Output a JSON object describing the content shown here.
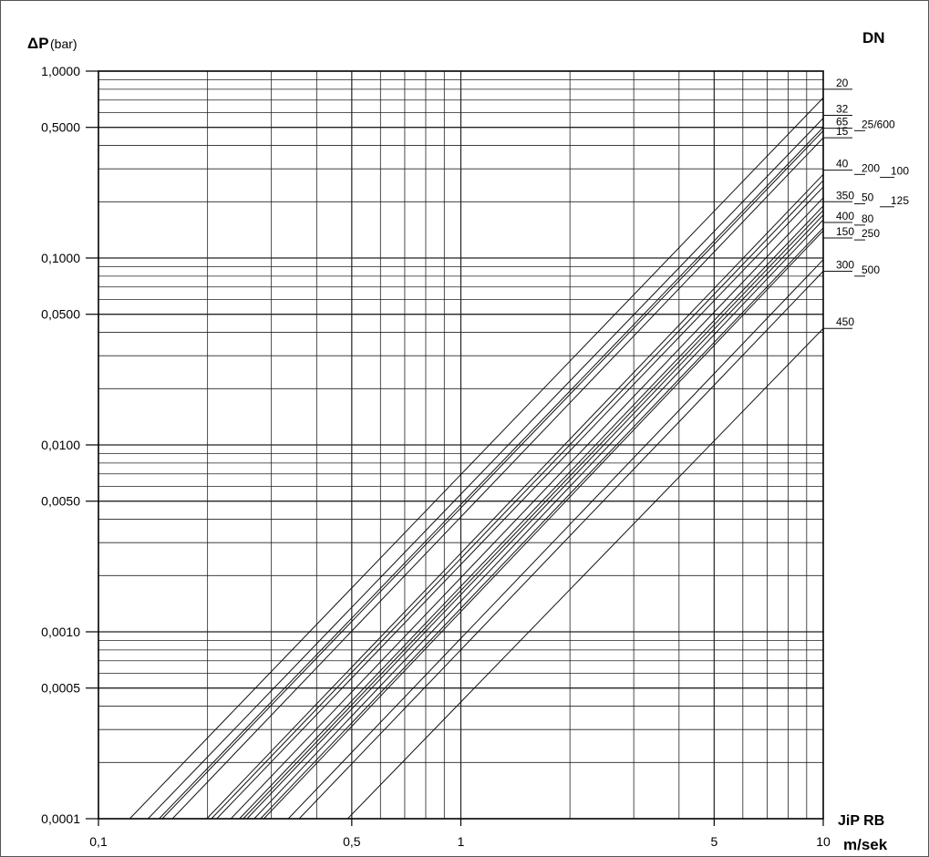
{
  "chart_data": {
    "type": "line",
    "title": "",
    "ylabel_symbol": "ΔP",
    "ylabel_unit": "(bar)",
    "xlabel": "m/sek",
    "legend_title": "DN",
    "brand": "JiP RB",
    "x_scale": "log",
    "y_scale": "log",
    "xlim": [
      0.1,
      10
    ],
    "ylim": [
      0.0001,
      1.0
    ],
    "grid": true,
    "x_ticks": [
      {
        "value": 0.1,
        "label": "0,1"
      },
      {
        "value": 0.5,
        "label": "0,5"
      },
      {
        "value": 1,
        "label": "1"
      },
      {
        "value": 5,
        "label": "5"
      },
      {
        "value": 10,
        "label": "10"
      }
    ],
    "y_ticks": [
      {
        "value": 1.0,
        "label": "1,0000"
      },
      {
        "value": 0.5,
        "label": "0,5000"
      },
      {
        "value": 0.1,
        "label": "0,1000"
      },
      {
        "value": 0.05,
        "label": "0,0500"
      },
      {
        "value": 0.01,
        "label": "0,0100"
      },
      {
        "value": 0.005,
        "label": "0,0050"
      },
      {
        "value": 0.001,
        "label": "0,0010"
      },
      {
        "value": 0.0005,
        "label": "0,0005"
      },
      {
        "value": 0.0001,
        "label": "0,0001"
      }
    ],
    "series": [
      {
        "name": "20",
        "x": [
          0.122,
          10
        ],
        "y": [
          0.0001,
          0.72
        ]
      },
      {
        "name": "32",
        "x": [
          0.137,
          10
        ],
        "y": [
          0.0001,
          0.56
        ]
      },
      {
        "name": "65",
        "x": [
          0.147,
          10
        ],
        "y": [
          0.0001,
          0.5
        ]
      },
      {
        "name": "25/600",
        "x": [
          0.15,
          10
        ],
        "y": [
          0.0001,
          0.48
        ]
      },
      {
        "name": "15",
        "x": [
          0.16,
          10
        ],
        "y": [
          0.0001,
          0.44
        ]
      },
      {
        "name": "40",
        "x": [
          0.199,
          10
        ],
        "y": [
          0.0001,
          0.28
        ]
      },
      {
        "name": "200",
        "x": [
          0.205,
          10
        ],
        "y": [
          0.0001,
          0.26
        ]
      },
      {
        "name": "100",
        "x": [
          0.212,
          10
        ],
        "y": [
          0.0001,
          0.24
        ]
      },
      {
        "name": "350",
        "x": [
          0.232,
          10
        ],
        "y": [
          0.0001,
          0.21
        ]
      },
      {
        "name": "50",
        "x": [
          0.245,
          10
        ],
        "y": [
          0.0001,
          0.19
        ]
      },
      {
        "name": "125",
        "x": [
          0.251,
          10
        ],
        "y": [
          0.0001,
          0.18
        ]
      },
      {
        "name": "400",
        "x": [
          0.257,
          10
        ],
        "y": [
          0.0001,
          0.17
        ]
      },
      {
        "name": "80",
        "x": [
          0.269,
          10
        ],
        "y": [
          0.0001,
          0.16
        ]
      },
      {
        "name": "150",
        "x": [
          0.28,
          10
        ],
        "y": [
          0.0001,
          0.145
        ]
      },
      {
        "name": "250",
        "x": [
          0.286,
          10
        ],
        "y": [
          0.0001,
          0.14
        ]
      },
      {
        "name": "300",
        "x": [
          0.334,
          10
        ],
        "y": [
          0.0001,
          0.098
        ]
      },
      {
        "name": "500",
        "x": [
          0.358,
          10
        ],
        "y": [
          0.0001,
          0.085
        ]
      },
      {
        "name": "450",
        "x": [
          0.487,
          10
        ],
        "y": [
          0.0001,
          0.042
        ]
      }
    ],
    "line_labels": [
      {
        "text": "20",
        "y": 0.8,
        "col": 0
      },
      {
        "text": "32",
        "y": 0.58,
        "col": 0
      },
      {
        "text": "65",
        "y": 0.495,
        "col": 0
      },
      {
        "text": "25/600",
        "y": 0.48,
        "col": 1
      },
      {
        "text": "15",
        "y": 0.44,
        "col": 0
      },
      {
        "text": "40",
        "y": 0.295,
        "col": 0
      },
      {
        "text": "200",
        "y": 0.28,
        "col": 1
      },
      {
        "text": "100",
        "y": 0.27,
        "col": 2
      },
      {
        "text": "350",
        "y": 0.2,
        "col": 0
      },
      {
        "text": "50",
        "y": 0.195,
        "col": 1
      },
      {
        "text": "125",
        "y": 0.188,
        "col": 2
      },
      {
        "text": "400",
        "y": 0.155,
        "col": 0
      },
      {
        "text": "80",
        "y": 0.15,
        "col": 1
      },
      {
        "text": "150",
        "y": 0.128,
        "col": 0
      },
      {
        "text": "250",
        "y": 0.125,
        "col": 1
      },
      {
        "text": "300",
        "y": 0.085,
        "col": 0
      },
      {
        "text": "500",
        "y": 0.08,
        "col": 1
      },
      {
        "text": "450",
        "y": 0.042,
        "col": 0
      }
    ]
  }
}
